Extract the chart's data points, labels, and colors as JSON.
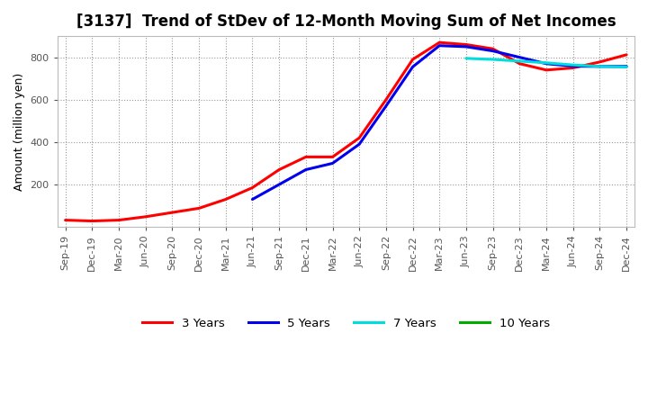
{
  "title": "[3137]  Trend of StDev of 12-Month Moving Sum of Net Incomes",
  "ylabel": "Amount (million yen)",
  "background_color": "#ffffff",
  "grid_color": "#999999",
  "ylim": [
    0,
    900
  ],
  "yticks": [
    200,
    400,
    600,
    800
  ],
  "x_labels": [
    "Sep-19",
    "Dec-19",
    "Mar-20",
    "Jun-20",
    "Sep-20",
    "Dec-20",
    "Mar-21",
    "Jun-21",
    "Sep-21",
    "Dec-21",
    "Mar-22",
    "Jun-22",
    "Sep-22",
    "Dec-22",
    "Mar-23",
    "Jun-23",
    "Sep-23",
    "Dec-23",
    "Mar-24",
    "Jun-24",
    "Sep-24",
    "Dec-24"
  ],
  "series": {
    "3 Years": {
      "color": "#ff0000",
      "linewidth": 2.2,
      "values": [
        32,
        28,
        32,
        48,
        68,
        88,
        130,
        185,
        270,
        330,
        330,
        420,
        600,
        790,
        870,
        860,
        840,
        770,
        740,
        750,
        778,
        812
      ]
    },
    "5 Years": {
      "color": "#0000ee",
      "linewidth": 2.2,
      "values": [
        null,
        null,
        null,
        null,
        null,
        null,
        null,
        130,
        200,
        270,
        300,
        390,
        570,
        755,
        855,
        850,
        830,
        800,
        770,
        758,
        757,
        757
      ]
    },
    "7 Years": {
      "color": "#00dddd",
      "linewidth": 2.2,
      "values": [
        null,
        null,
        null,
        null,
        null,
        null,
        null,
        null,
        null,
        null,
        null,
        null,
        null,
        null,
        null,
        795,
        790,
        782,
        774,
        764,
        757,
        754
      ]
    },
    "10 Years": {
      "color": "#00aa00",
      "linewidth": 2.2,
      "values": [
        null,
        null,
        null,
        null,
        null,
        null,
        null,
        null,
        null,
        null,
        null,
        null,
        null,
        null,
        null,
        null,
        null,
        null,
        null,
        null,
        null,
        null
      ]
    }
  },
  "legend_order": [
    "3 Years",
    "5 Years",
    "7 Years",
    "10 Years"
  ],
  "title_fontsize": 12,
  "label_fontsize": 9,
  "tick_fontsize": 8
}
